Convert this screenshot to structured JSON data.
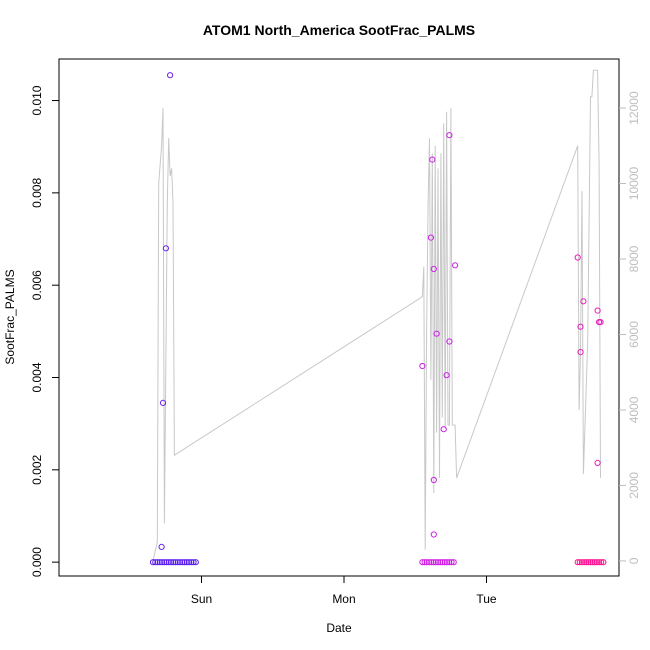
{
  "chart_data": {
    "type": "scatter",
    "title": "ATOM1 North_America SootFrac_PALMS",
    "xlabel": "Date",
    "ylabel": "SootFrac_PALMS",
    "ylim": [
      -0.0003,
      0.0109
    ],
    "y2lim": [
      -400,
      13300
    ],
    "x_ticks": [
      {
        "x": 1.0,
        "label": "Sun"
      },
      {
        "x": 2.0,
        "label": "Mon"
      },
      {
        "x": 3.0,
        "label": "Tue"
      }
    ],
    "y_ticks": [
      {
        "v": 0.0,
        "label": "0.000"
      },
      {
        "v": 0.002,
        "label": "0.002"
      },
      {
        "v": 0.004,
        "label": "0.004"
      },
      {
        "v": 0.006,
        "label": "0.006"
      },
      {
        "v": 0.008,
        "label": "0.008"
      },
      {
        "v": 0.01,
        "label": "0.010"
      }
    ],
    "y2_ticks": [
      {
        "v": 0,
        "label": "0"
      },
      {
        "v": 2000,
        "label": "2000"
      },
      {
        "v": 4000,
        "label": "4000"
      },
      {
        "v": 6000,
        "label": "6000"
      },
      {
        "v": 8000,
        "label": "8000"
      },
      {
        "v": 10000,
        "label": "10000"
      },
      {
        "v": 12000,
        "label": "12000"
      }
    ],
    "grid": false,
    "line_color": "#c8c8c8",
    "zero_cluster": [
      {
        "x0": 0.66,
        "x1": 0.96,
        "color": "#5a1ff0"
      },
      {
        "x0": 2.55,
        "x1": 2.77,
        "color": "#d21fe6"
      },
      {
        "x0": 3.64,
        "x1": 3.82,
        "color": "#ff1493"
      }
    ],
    "points": [
      {
        "x": 0.73,
        "y": 0.00345,
        "color": "#6a22ee"
      },
      {
        "x": 0.72,
        "y": 0.00033,
        "color": "#6a22ee"
      },
      {
        "x": 0.75,
        "y": 0.0068,
        "color": "#6a22ee"
      },
      {
        "x": 0.78,
        "y": 0.01055,
        "color": "#6a22ee"
      },
      {
        "x": 2.55,
        "y": 0.00425,
        "color": "#cc22e6"
      },
      {
        "x": 2.61,
        "y": 0.00703,
        "color": "#cc22e6"
      },
      {
        "x": 2.62,
        "y": 0.00872,
        "color": "#cc22e6"
      },
      {
        "x": 2.63,
        "y": 0.00635,
        "color": "#cc22e6"
      },
      {
        "x": 2.63,
        "y": 0.00178,
        "color": "#cc22e6"
      },
      {
        "x": 2.63,
        "y": 0.0006,
        "color": "#cc22e6"
      },
      {
        "x": 2.65,
        "y": 0.00495,
        "color": "#cc22e6"
      },
      {
        "x": 2.7,
        "y": 0.00288,
        "color": "#cc22e6"
      },
      {
        "x": 2.72,
        "y": 0.00405,
        "color": "#cc22e6"
      },
      {
        "x": 2.74,
        "y": 0.00478,
        "color": "#cc22e6"
      },
      {
        "x": 2.74,
        "y": 0.00925,
        "color": "#cc22e6"
      },
      {
        "x": 2.78,
        "y": 0.00643,
        "color": "#cc22e6"
      },
      {
        "x": 3.64,
        "y": 0.0066,
        "color": "#e81fb8"
      },
      {
        "x": 3.66,
        "y": 0.0051,
        "color": "#e81fb8"
      },
      {
        "x": 3.66,
        "y": 0.00455,
        "color": "#e81fb8"
      },
      {
        "x": 3.68,
        "y": 0.00565,
        "color": "#e81fb8"
      },
      {
        "x": 3.78,
        "y": 0.00215,
        "color": "#e81fb8"
      },
      {
        "x": 3.78,
        "y": 0.00545,
        "color": "#e81fb8"
      },
      {
        "x": 3.79,
        "y": 0.0052,
        "color": "#e81fb8"
      },
      {
        "x": 3.8,
        "y": 0.0052,
        "color": "#e81fb8"
      }
    ],
    "altitude_line": [
      [
        0.66,
        0
      ],
      [
        0.69,
        500
      ],
      [
        0.7,
        10000
      ],
      [
        0.72,
        11000
      ],
      [
        0.73,
        12000
      ],
      [
        0.74,
        1000
      ],
      [
        0.76,
        9500
      ],
      [
        0.77,
        11200
      ],
      [
        0.78,
        10200
      ],
      [
        0.79,
        10400
      ],
      [
        0.8,
        9500
      ],
      [
        0.81,
        2800
      ],
      [
        2.55,
        7000
      ],
      [
        2.56,
        7800
      ],
      [
        2.57,
        300
      ],
      [
        2.58,
        6000
      ],
      [
        2.59,
        9500
      ],
      [
        2.6,
        11200
      ],
      [
        2.61,
        4800
      ],
      [
        2.62,
        10800
      ],
      [
        2.63,
        1800
      ],
      [
        2.64,
        11000
      ],
      [
        2.65,
        3400
      ],
      [
        2.66,
        10400
      ],
      [
        2.67,
        2200
      ],
      [
        2.68,
        10800
      ],
      [
        2.69,
        3800
      ],
      [
        2.7,
        11600
      ],
      [
        2.71,
        3500
      ],
      [
        2.72,
        11900
      ],
      [
        2.73,
        3600
      ],
      [
        2.74,
        3600
      ],
      [
        2.75,
        12000
      ],
      [
        2.76,
        3600
      ],
      [
        2.78,
        3600
      ],
      [
        2.79,
        2200
      ],
      [
        3.64,
        11000
      ],
      [
        3.65,
        4000
      ],
      [
        3.66,
        5500
      ],
      [
        3.67,
        9800
      ],
      [
        3.68,
        2300
      ],
      [
        3.71,
        5800
      ],
      [
        3.73,
        12300
      ],
      [
        3.74,
        12300
      ],
      [
        3.75,
        13000
      ],
      [
        3.78,
        13000
      ],
      [
        3.79,
        10500
      ],
      [
        3.8,
        2200
      ]
    ]
  }
}
